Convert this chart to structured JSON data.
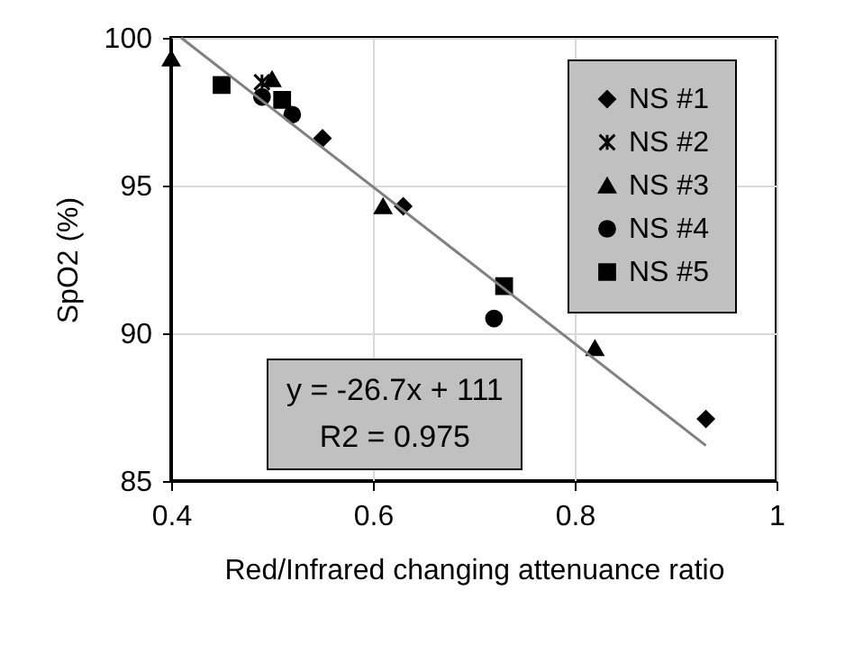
{
  "chart_data": {
    "type": "scatter",
    "xlabel": "Red/Infrared changing attenuance ratio",
    "ylabel": "SpO2 (%)",
    "xlim": [
      0.4,
      1
    ],
    "xticks": [
      0.4,
      0.6,
      0.8,
      1
    ],
    "ylim": [
      85,
      100
    ],
    "yticks": [
      85,
      90,
      95,
      100
    ],
    "grid": true,
    "legend": "top right",
    "annotations": [
      "y = -26.7x + 111",
      "R2 = 0.975"
    ],
    "series": [
      {
        "name": "NS #1",
        "color": "#000000",
        "marker": "diamond",
        "x": [
          0.55,
          0.63,
          0.93
        ],
        "values": [
          96.6,
          94.3,
          87.1
        ]
      },
      {
        "name": "NS #2",
        "color": "#000000",
        "marker": "cross",
        "x": [
          0.49
        ],
        "values": [
          98.5
        ]
      },
      {
        "name": "NS #3",
        "color": "#000000",
        "marker": "triangle",
        "x": [
          0.4,
          0.5,
          0.61,
          0.82
        ],
        "values": [
          99.3,
          98.6,
          94.3,
          89.5
        ]
      },
      {
        "name": "NS #4",
        "color": "#000000",
        "marker": "circle",
        "x": [
          0.49,
          0.52,
          0.72
        ],
        "values": [
          98.0,
          97.4,
          90.5
        ]
      },
      {
        "name": "NS #5",
        "color": "#000000",
        "marker": "square",
        "x": [
          0.45,
          0.51,
          0.73
        ],
        "values": [
          98.4,
          97.9,
          91.6
        ]
      },
      {
        "type": "line",
        "color": "#808080",
        "x": [
          0.41,
          0.93
        ],
        "values": [
          100,
          86.2
        ]
      }
    ]
  }
}
